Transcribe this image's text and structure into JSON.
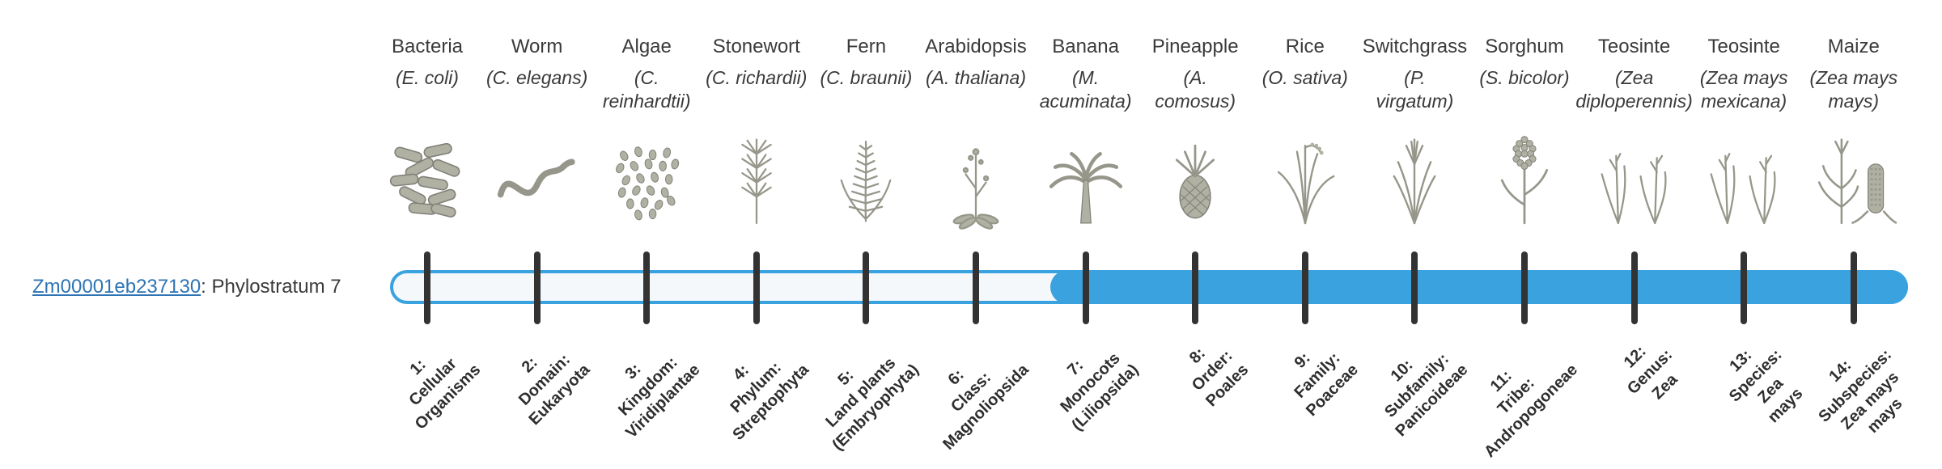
{
  "gene": {
    "id": "Zm00001eb237130",
    "annotation": ": Phylostratum 7"
  },
  "bar": {
    "fill_start_stratum": 7,
    "total_strata": 14
  },
  "colors": {
    "bar_blue": "#3AA2DE",
    "bar_track": "#f4f8fb",
    "tick": "#333333",
    "link_blue": "#2E74B5",
    "text": "#3a3a3a",
    "icon_gray": "#96968a"
  },
  "strata": [
    {
      "index": 1,
      "common": "Bacteria",
      "sci_lines": [
        "(E. coli)"
      ],
      "tick_label_lines": [
        "1:",
        "Cellular",
        "Organisms"
      ],
      "icon": "bacteria"
    },
    {
      "index": 2,
      "common": "Worm",
      "sci_lines": [
        "(C. elegans)"
      ],
      "tick_label_lines": [
        "2:",
        "Domain:",
        "Eukaryota"
      ],
      "icon": "worm"
    },
    {
      "index": 3,
      "common": "Algae",
      "sci_lines": [
        "(C.",
        "reinhardtii)"
      ],
      "tick_label_lines": [
        "3:",
        "Kingdom:",
        "Viridiplantae"
      ],
      "icon": "algae"
    },
    {
      "index": 4,
      "common": "Stonewort",
      "sci_lines": [
        "(C. richardii)"
      ],
      "tick_label_lines": [
        "4:",
        "Phylum:",
        "Streptophyta"
      ],
      "icon": "stonewort"
    },
    {
      "index": 5,
      "common": "Fern",
      "sci_lines": [
        "(C. braunii)"
      ],
      "tick_label_lines": [
        "5:",
        "Land plants",
        "(Embryophyta)"
      ],
      "icon": "fern"
    },
    {
      "index": 6,
      "common": "Arabidopsis",
      "sci_lines": [
        "(A. thaliana)"
      ],
      "tick_label_lines": [
        "6:",
        "Class:",
        "Magnoliopsida"
      ],
      "icon": "arabidopsis"
    },
    {
      "index": 7,
      "common": "Banana",
      "sci_lines": [
        "(M.",
        "acuminata)"
      ],
      "tick_label_lines": [
        "7:",
        "Monocots",
        "(Liliopsida)"
      ],
      "icon": "banana"
    },
    {
      "index": 8,
      "common": "Pineapple",
      "sci_lines": [
        "(A.",
        "comosus)"
      ],
      "tick_label_lines": [
        "8:",
        "Order:",
        "Poales"
      ],
      "icon": "pineapple"
    },
    {
      "index": 9,
      "common": "Rice",
      "sci_lines": [
        "(O. sativa)"
      ],
      "tick_label_lines": [
        "9:",
        "Family:",
        "Poaceae"
      ],
      "icon": "rice"
    },
    {
      "index": 10,
      "common": "Switchgrass",
      "sci_lines": [
        "(P.",
        "virgatum)"
      ],
      "tick_label_lines": [
        "10:",
        "Subfamily:",
        "Panicoideae"
      ],
      "icon": "switchgrass"
    },
    {
      "index": 11,
      "common": "Sorghum",
      "sci_lines": [
        "(S. bicolor)"
      ],
      "tick_label_lines": [
        "11:",
        "Tribe:",
        "Andropogoneae"
      ],
      "icon": "sorghum"
    },
    {
      "index": 12,
      "common": "Teosinte",
      "sci_lines": [
        "(Zea",
        "diploperennis)"
      ],
      "tick_label_lines": [
        "12:",
        "Genus:",
        "Zea"
      ],
      "icon": "teosinte"
    },
    {
      "index": 13,
      "common": "Teosinte",
      "sci_lines": [
        "(Zea mays",
        "mexicana)"
      ],
      "tick_label_lines": [
        "13:",
        "Species:",
        "Zea",
        "mays"
      ],
      "icon": "teosinte"
    },
    {
      "index": 14,
      "common": "Maize",
      "sci_lines": [
        "(Zea mays",
        "mays)"
      ],
      "tick_label_lines": [
        "14:",
        "Subspecies:",
        "Zea mays",
        "mays"
      ],
      "icon": "maize"
    }
  ]
}
